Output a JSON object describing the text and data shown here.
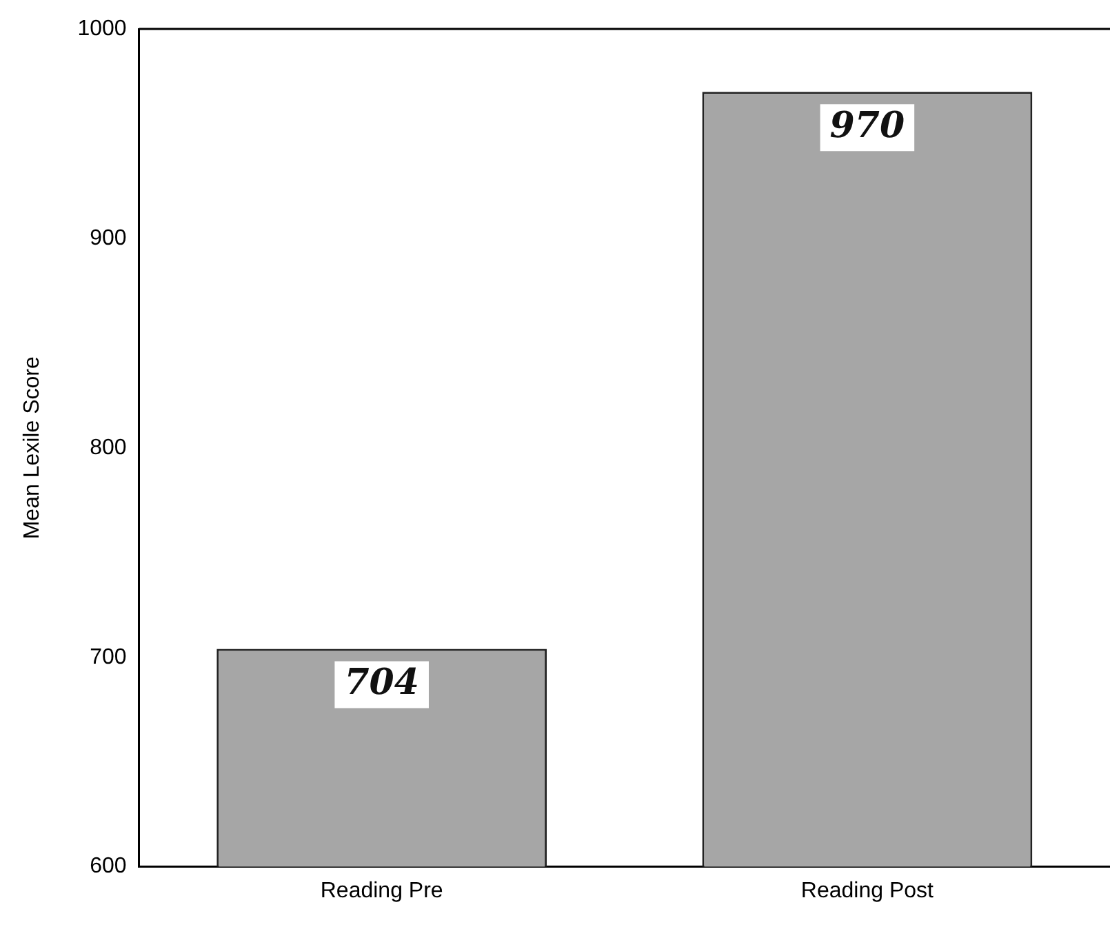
{
  "chart_data": {
    "type": "bar",
    "ylabel": "Mean Lexile Score",
    "categories": [
      "Reading Pre",
      "Reading Post"
    ],
    "values": [
      704,
      970
    ],
    "color": "#a6a6a6",
    "ylim": [
      600,
      1000
    ],
    "yticks": [
      600,
      700,
      800,
      900,
      1000
    ],
    "grid": false,
    "legend": false,
    "data_labels": true
  }
}
